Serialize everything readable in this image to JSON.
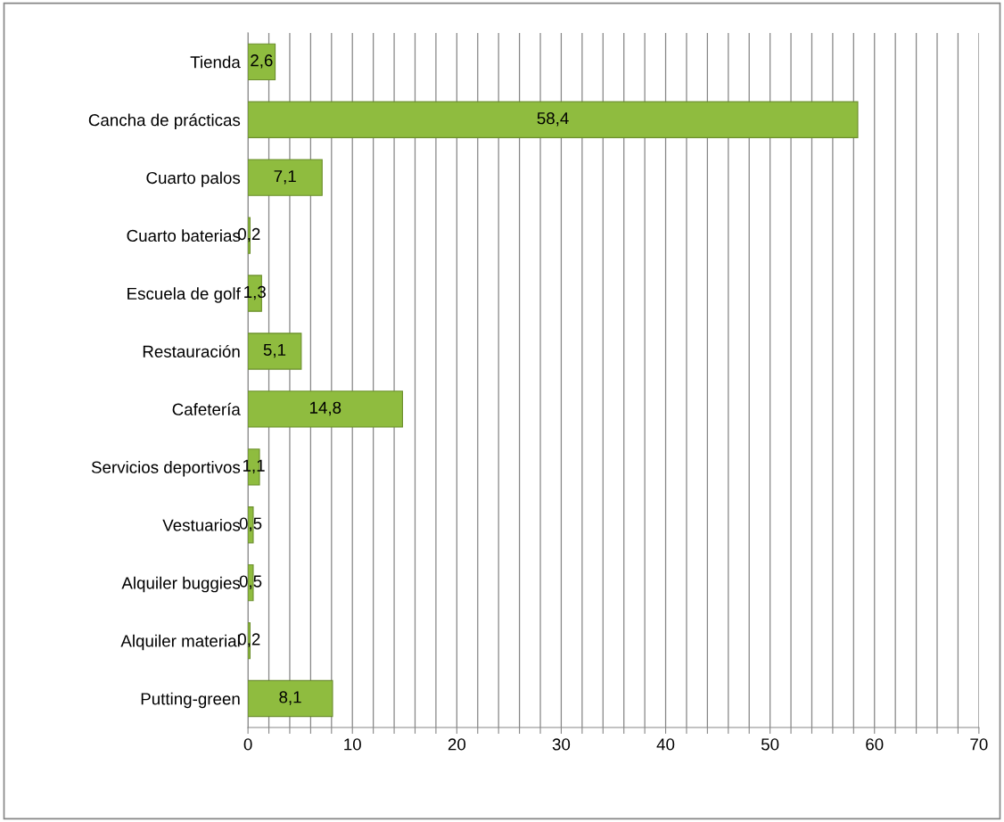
{
  "chart_data": {
    "type": "bar",
    "orientation": "horizontal",
    "categories": [
      "Tienda",
      "Cancha de prácticas",
      "Cuarto palos",
      "Cuarto baterias",
      "Escuela de golf",
      "Restauración",
      "Cafetería",
      "Servicios deportivos",
      "Vestuarios",
      "Alquiler buggies",
      "Alquiler material",
      "Putting-green"
    ],
    "values": [
      2.6,
      58.4,
      7.1,
      0.2,
      1.3,
      5.1,
      14.8,
      1.1,
      0.5,
      0.5,
      0.2,
      8.1
    ],
    "value_labels": [
      "2,6",
      "58,4",
      "7,1",
      "0,2",
      "1,3",
      "5,1",
      "14,8",
      "1,1",
      "0,5",
      "0,5",
      "0,2",
      "8,1"
    ],
    "color": "#8fbc3f",
    "xlim": [
      0,
      70
    ],
    "xticks": [
      0,
      {
        "value": 2,
        "label": null
      },
      {
        "value": 4,
        "label": null
      },
      {
        "value": 6,
        "label": null
      },
      {
        "value": 8,
        "label": null
      },
      10,
      {
        "value": 12,
        "label": null
      },
      {
        "value": 14,
        "label": null
      },
      {
        "value": 16,
        "label": null
      },
      {
        "value": 18,
        "label": null
      },
      20,
      {
        "value": 22,
        "label": null
      },
      {
        "value": 24,
        "label": null
      },
      {
        "value": 26,
        "label": null
      },
      {
        "value": 28,
        "label": null
      },
      30,
      {
        "value": 32,
        "label": null
      },
      {
        "value": 34,
        "label": null
      },
      {
        "value": 36,
        "label": null
      },
      {
        "value": 38,
        "label": null
      },
      40,
      {
        "value": 42,
        "label": null
      },
      {
        "value": 44,
        "label": null
      },
      {
        "value": 46,
        "label": null
      },
      {
        "value": 48,
        "label": null
      },
      50,
      {
        "value": 52,
        "label": null
      },
      {
        "value": 54,
        "label": null
      },
      {
        "value": 56,
        "label": null
      },
      {
        "value": 58,
        "label": null
      },
      60,
      {
        "value": 62,
        "label": null
      },
      {
        "value": 64,
        "label": null
      },
      {
        "value": 66,
        "label": null
      },
      {
        "value": 68,
        "label": null
      },
      70
    ],
    "grid": "x",
    "legend": false
  }
}
